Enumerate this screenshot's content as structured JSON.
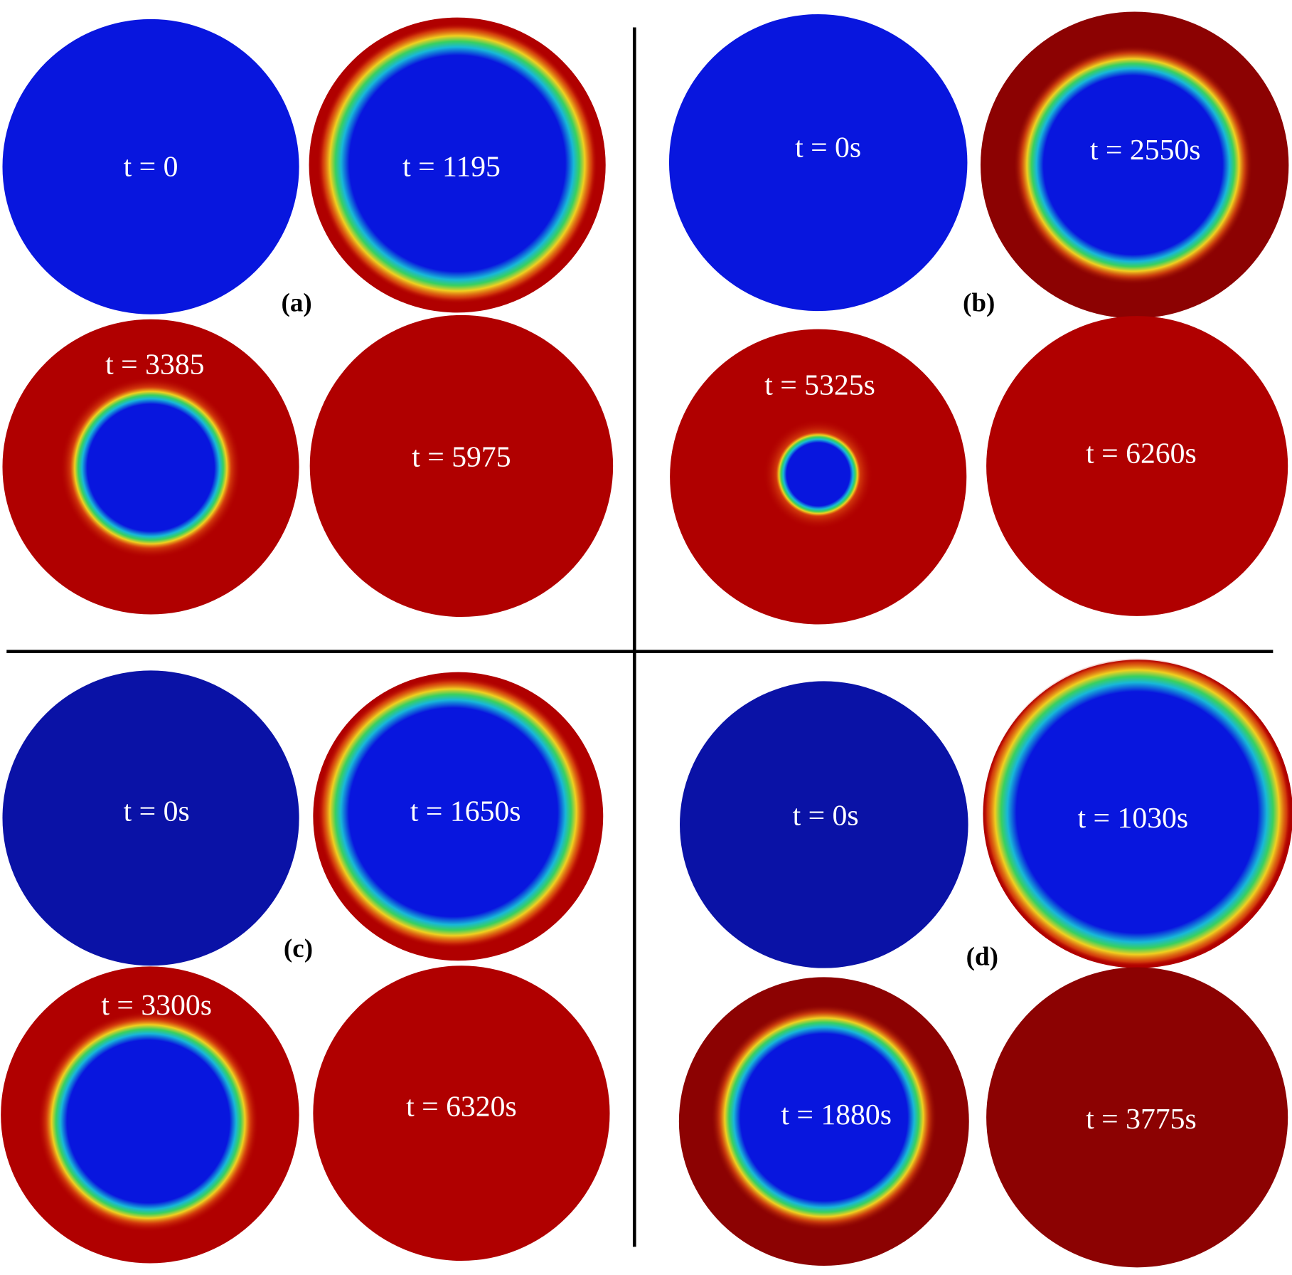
{
  "panels": [
    {
      "label": "(a)",
      "snapshots": [
        {
          "time": "t = 0"
        },
        {
          "time": "t = 1195"
        },
        {
          "time": "t = 3385"
        },
        {
          "time": "t = 5975"
        }
      ]
    },
    {
      "label": "(b)",
      "snapshots": [
        {
          "time": "t = 0s"
        },
        {
          "time": "t = 2550s"
        },
        {
          "time": "t = 5325s"
        },
        {
          "time": "t = 6260s"
        }
      ]
    },
    {
      "label": "(c)",
      "snapshots": [
        {
          "time": "t = 0s"
        },
        {
          "time": "t = 1650s"
        },
        {
          "time": "t = 3300s"
        },
        {
          "time": "t = 6320s"
        }
      ]
    },
    {
      "label": "(d)",
      "snapshots": [
        {
          "time": "t = 0s"
        },
        {
          "time": "t = 1030s"
        },
        {
          "time": "t = 1880s"
        },
        {
          "time": "t = 3775s"
        }
      ]
    }
  ]
}
